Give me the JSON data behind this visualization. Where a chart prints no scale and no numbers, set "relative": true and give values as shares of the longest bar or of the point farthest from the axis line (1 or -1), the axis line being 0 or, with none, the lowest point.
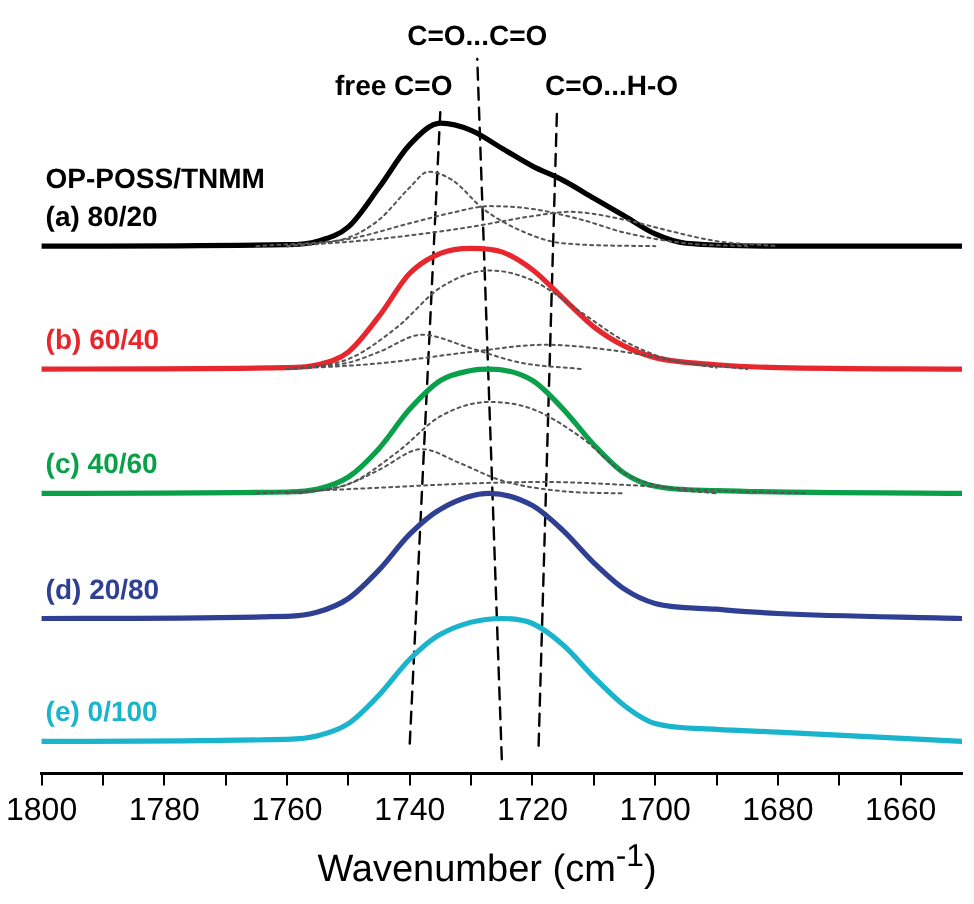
{
  "chart_data": {
    "type": "line",
    "relative": true,
    "xlabel": "Wavenumber (cm$^{-1}$)",
    "legend_title": "OP-POSS/TNMM",
    "legend": false,
    "grid": false,
    "tick_labels": "x",
    "marker": "none",
    "xlim": [
      1800,
      1650
    ],
    "xticks": [
      1800,
      {
        "value": 1790,
        "label": null
      },
      1780,
      {
        "value": 1770,
        "label": null
      },
      1760,
      {
        "value": 1750,
        "label": null
      },
      1740,
      {
        "value": 1730,
        "label": null
      },
      1720,
      {
        "value": 1710,
        "label": null
      },
      1700,
      {
        "value": 1690,
        "label": null
      },
      1680,
      {
        "value": 1670,
        "label": null
      },
      1660
    ],
    "annotations": [
      "free C=O",
      "C=O...C=O",
      "C=O...H-O"
    ],
    "series": [
      {
        "type": "line",
        "line_style": "dotted",
        "color": "#555555",
        "x": [
          1760,
          1750,
          1745,
          1740,
          1737,
          1733,
          1728,
          1722,
          1715,
          1700
        ],
        "values": [
          0.738,
          0.75,
          0.775,
          0.82,
          0.842,
          0.83,
          0.79,
          0.76,
          0.742,
          0.738
        ]
      },
      {
        "type": "line",
        "line_style": "dotted",
        "color": "#555555",
        "x": [
          1765,
          1750,
          1740,
          1733,
          1727,
          1720,
          1712,
          1705,
          1695,
          1685
        ],
        "values": [
          0.738,
          0.748,
          0.77,
          0.785,
          0.794,
          0.79,
          0.775,
          0.757,
          0.742,
          0.738
        ]
      },
      {
        "type": "line",
        "line_style": "dotted",
        "color": "#555555",
        "x": [
          1760,
          1745,
          1730,
          1720,
          1714,
          1705,
          1698,
          1690,
          1680
        ],
        "values": [
          0.738,
          0.748,
          0.765,
          0.78,
          0.786,
          0.775,
          0.76,
          0.745,
          0.738
        ]
      },
      {
        "type": "line",
        "line_style": "dotted",
        "color": "#555555",
        "x": [
          1760,
          1750,
          1745,
          1738,
          1730,
          1722,
          1712
        ],
        "values": [
          0.566,
          0.575,
          0.59,
          0.614,
          0.595,
          0.575,
          0.566
        ]
      },
      {
        "type": "line",
        "line_style": "dotted",
        "color": "#555555",
        "x": [
          1760,
          1750,
          1742,
          1735,
          1727,
          1720,
          1712,
          1705,
          1698,
          1690
        ],
        "values": [
          0.566,
          0.58,
          0.625,
          0.68,
          0.704,
          0.69,
          0.645,
          0.605,
          0.58,
          0.568
        ]
      },
      {
        "type": "line",
        "line_style": "dotted",
        "color": "#555555",
        "x": [
          1760,
          1745,
          1730,
          1718,
          1705,
          1695,
          1685
        ],
        "values": [
          0.566,
          0.574,
          0.59,
          0.6,
          0.59,
          0.575,
          0.566
        ]
      },
      {
        "type": "line",
        "line_style": "dotted",
        "color": "#555555",
        "x": [
          1758,
          1750,
          1745,
          1738,
          1732,
          1725,
          1715,
          1705
        ],
        "values": [
          0.392,
          0.405,
          0.425,
          0.454,
          0.435,
          0.41,
          0.395,
          0.392
        ]
      },
      {
        "type": "line",
        "line_style": "dotted",
        "color": "#555555",
        "x": [
          1760,
          1750,
          1742,
          1735,
          1727,
          1720,
          1712,
          1705,
          1698,
          1690
        ],
        "values": [
          0.392,
          0.405,
          0.45,
          0.5,
          0.52,
          0.51,
          0.47,
          0.42,
          0.4,
          0.392
        ]
      },
      {
        "type": "line",
        "line_style": "dotted",
        "color": "#555555",
        "x": [
          1765,
          1745,
          1730,
          1718,
          1705,
          1690,
          1675
        ],
        "values": [
          0.392,
          0.4,
          0.406,
          0.408,
          0.404,
          0.396,
          0.392
        ]
      },
      {
        "type": "line",
        "name": "(a) 80/20",
        "line_style": "solid",
        "color": "#000000",
        "x": [
          1800,
          1760,
          1755,
          1750,
          1745,
          1740,
          1735,
          1730,
          1725,
          1720,
          1715,
          1710,
          1705,
          1700,
          1695,
          1680,
          1650
        ],
        "values": [
          0.738,
          0.74,
          0.745,
          0.765,
          0.82,
          0.88,
          0.91,
          0.9,
          0.875,
          0.85,
          0.83,
          0.805,
          0.78,
          0.755,
          0.742,
          0.738,
          0.738
        ]
      },
      {
        "type": "line",
        "name": "(b) 60/40",
        "line_style": "solid",
        "color": "#e8262e",
        "x": [
          1800,
          1760,
          1755,
          1750,
          1745,
          1740,
          1735,
          1730,
          1725,
          1720,
          1715,
          1710,
          1705,
          1700,
          1690,
          1680,
          1650
        ],
        "values": [
          0.566,
          0.568,
          0.572,
          0.59,
          0.64,
          0.7,
          0.728,
          0.735,
          0.73,
          0.705,
          0.665,
          0.625,
          0.598,
          0.582,
          0.572,
          0.568,
          0.566
        ]
      },
      {
        "type": "line",
        "name": "(c) 40/60",
        "line_style": "solid",
        "color": "#0aa04a",
        "x": [
          1800,
          1760,
          1755,
          1750,
          1745,
          1740,
          1735,
          1730,
          1727,
          1720,
          1715,
          1710,
          1705,
          1700,
          1690,
          1650
        ],
        "values": [
          0.392,
          0.394,
          0.398,
          0.415,
          0.455,
          0.51,
          0.55,
          0.564,
          0.566,
          0.55,
          0.51,
          0.46,
          0.42,
          0.402,
          0.396,
          0.392
        ]
      },
      {
        "type": "line",
        "name": "(d) 20/80",
        "line_style": "solid",
        "color": "#2e3f94",
        "x": [
          1800,
          1760,
          1755,
          1750,
          1745,
          1740,
          1735,
          1727,
          1720,
          1715,
          1710,
          1705,
          1700,
          1690,
          1680,
          1650
        ],
        "values": [
          0.217,
          0.22,
          0.226,
          0.245,
          0.285,
          0.335,
          0.37,
          0.392,
          0.375,
          0.34,
          0.295,
          0.258,
          0.238,
          0.23,
          0.224,
          0.217
        ]
      },
      {
        "type": "line",
        "name": "(e) 0/100",
        "line_style": "solid",
        "color": "#1ab4cc",
        "x": [
          1800,
          1760,
          1755,
          1750,
          1745,
          1740,
          1735,
          1725,
          1720,
          1715,
          1710,
          1705,
          1700,
          1690,
          1680,
          1650
        ],
        "values": [
          0.045,
          0.048,
          0.053,
          0.07,
          0.11,
          0.16,
          0.195,
          0.217,
          0.21,
          0.18,
          0.135,
          0.095,
          0.07,
          0.062,
          0.058,
          0.045
        ]
      },
      {
        "type": "line",
        "line_style": "dashed",
        "color": "#000000",
        "x": [
          1740,
          1735
        ],
        "values": [
          0.042,
          0.93
        ]
      },
      {
        "type": "line",
        "line_style": "dashed",
        "color": "#000000",
        "x": [
          1725,
          1729
        ],
        "values": [
          0.02,
          1.0
        ]
      },
      {
        "type": "line",
        "line_style": "dashed",
        "color": "#000000",
        "x": [
          1719,
          1716
        ],
        "values": [
          0.039,
          0.93
        ]
      }
    ]
  }
}
